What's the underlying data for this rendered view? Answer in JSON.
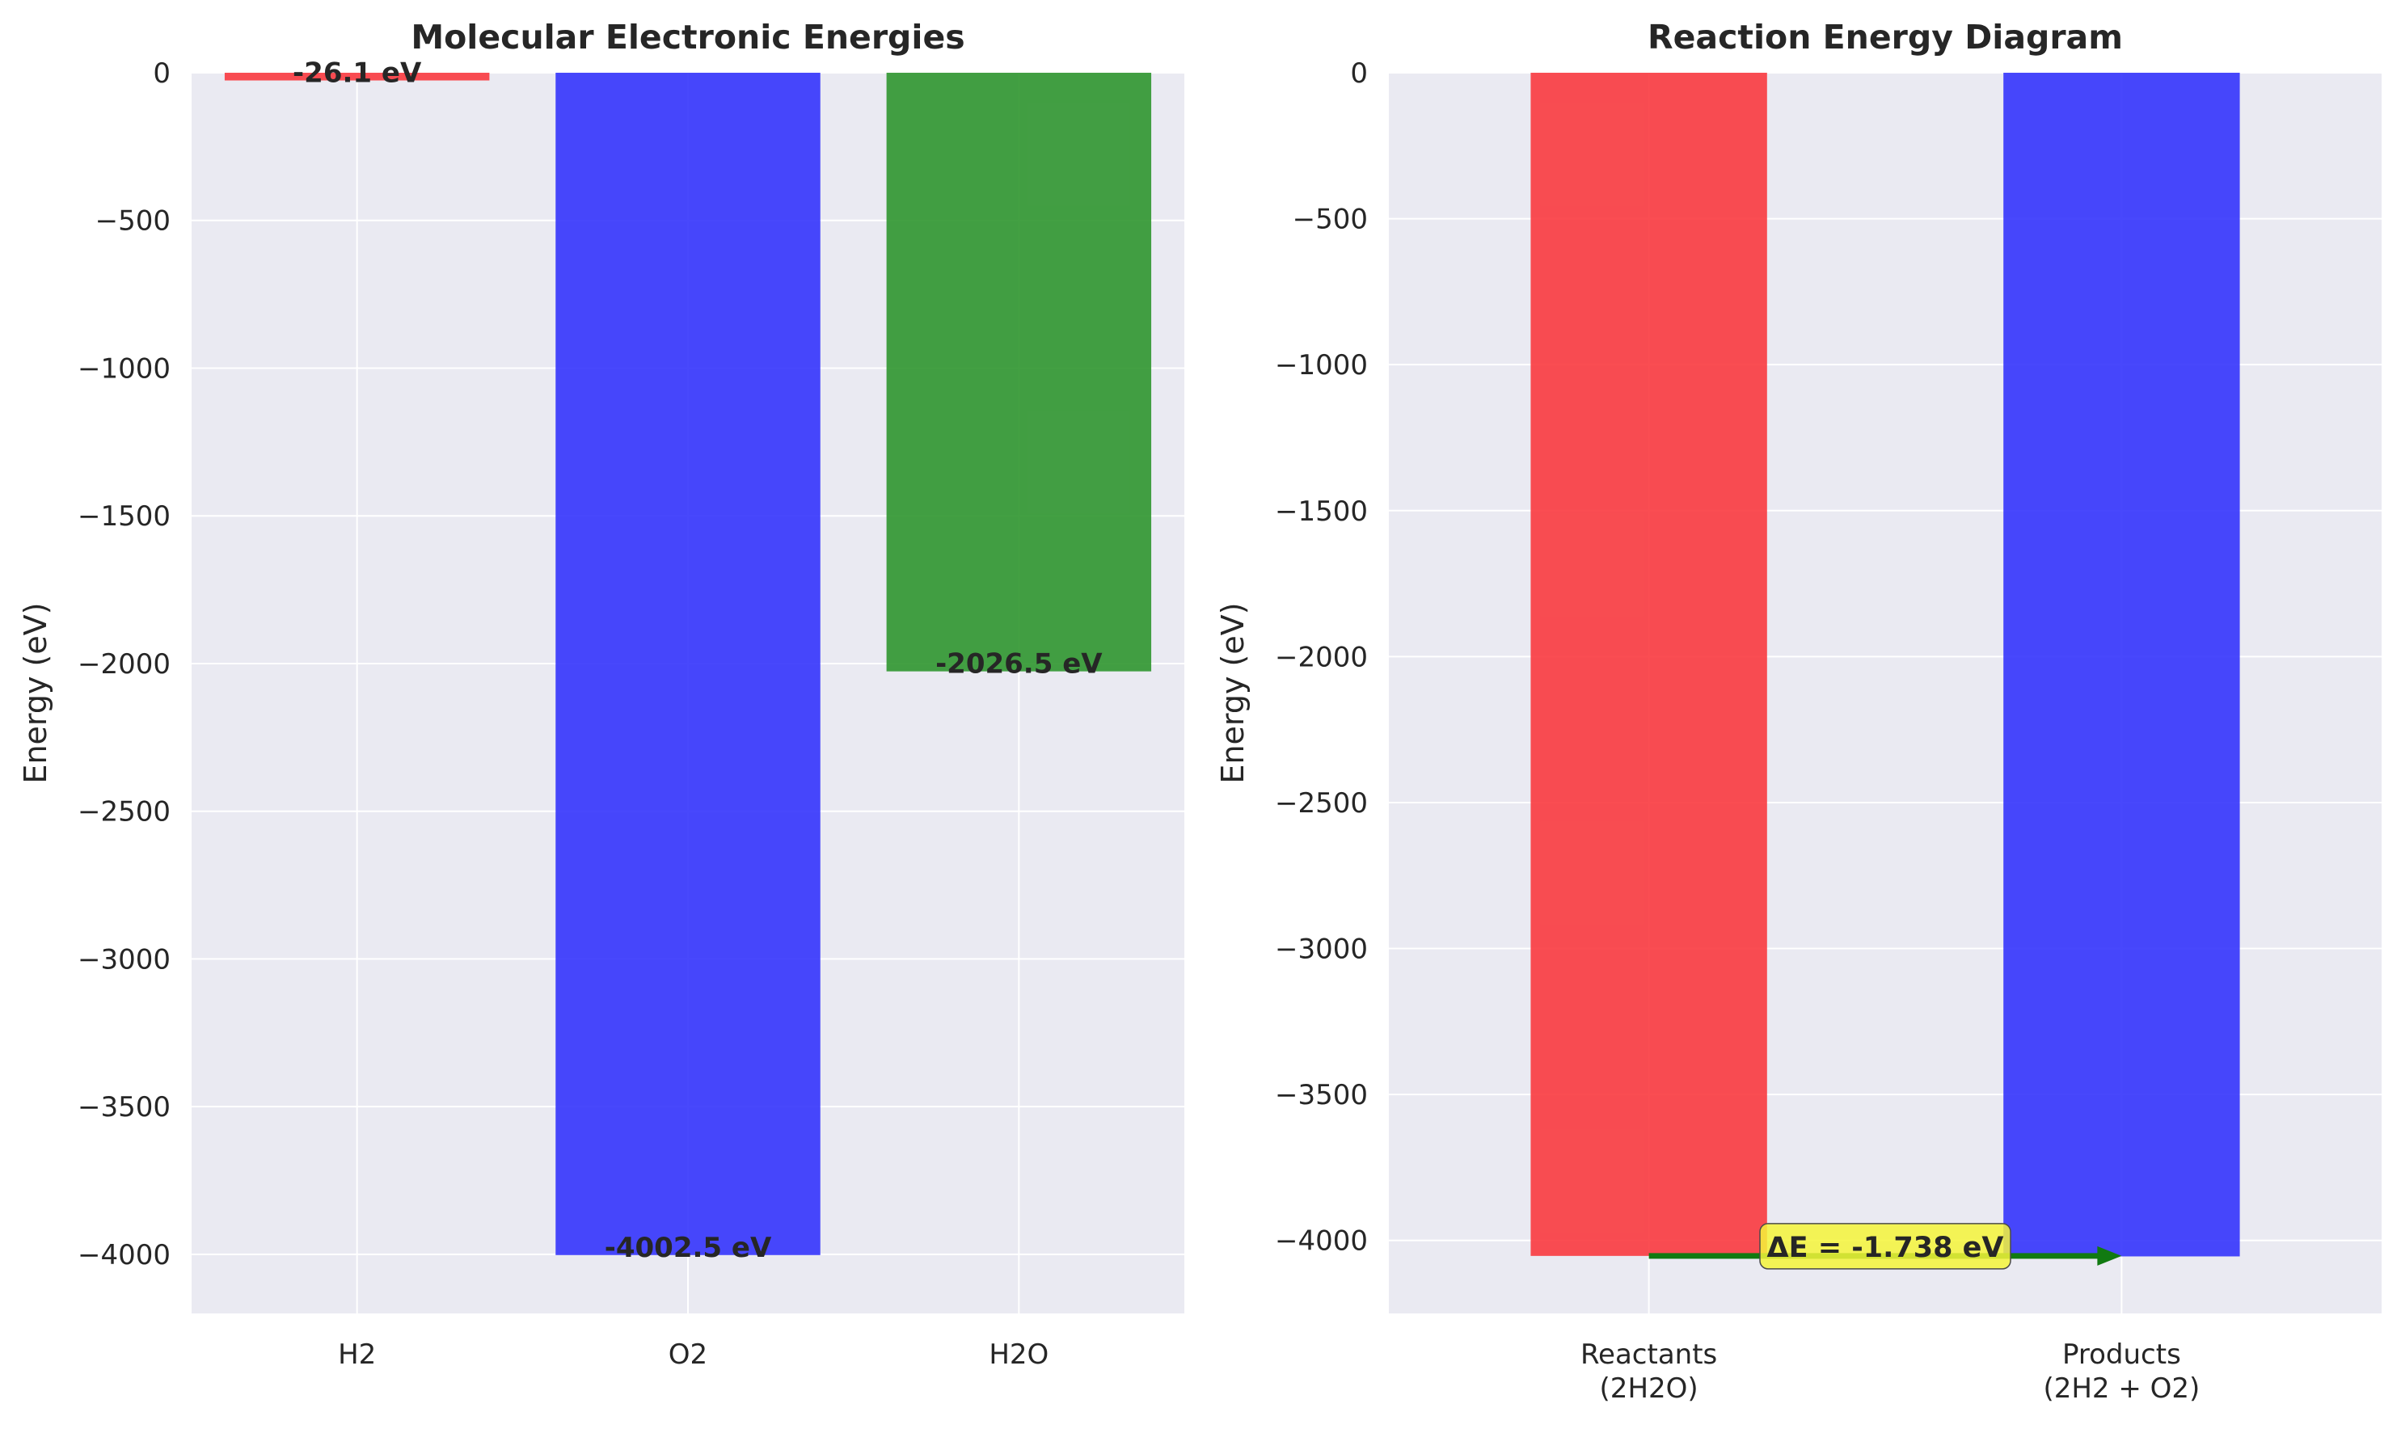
{
  "chart_data": [
    {
      "type": "bar",
      "title": "Molecular Electronic Energies",
      "xlabel": "",
      "ylabel": "Energy (eV)",
      "categories": [
        "H2",
        "O2",
        "H2O"
      ],
      "values": [
        -26.1,
        -4002.5,
        -2026.5
      ],
      "bar_labels": [
        "-26.1 eV",
        "-4002.5 eV",
        "-2026.5 eV"
      ],
      "colors": [
        "#f93a3f",
        "#3434fc",
        "#2f962f"
      ],
      "ylim": [
        -4200,
        0
      ],
      "yticks": [
        0,
        -500,
        -1000,
        -1500,
        -2000,
        -2500,
        -3000,
        -3500,
        -4000
      ],
      "ytick_labels": [
        "0",
        "−500",
        "−1000",
        "−1500",
        "−2000",
        "−2500",
        "−3000",
        "−3500",
        "−4000"
      ],
      "grid": true
    },
    {
      "type": "bar",
      "title": "Reaction Energy Diagram",
      "xlabel": "",
      "ylabel": "Energy (eV)",
      "categories": [
        [
          "Reactants",
          "(2H2O)"
        ],
        [
          "Products",
          "(2H2 + O2)"
        ]
      ],
      "values": [
        -4053.0,
        -4054.7
      ],
      "colors": [
        "#f93a3f",
        "#3434fc"
      ],
      "ylim": [
        -4250,
        0
      ],
      "yticks": [
        0,
        -500,
        -1000,
        -1500,
        -2000,
        -2500,
        -3000,
        -3500,
        -4000
      ],
      "ytick_labels": [
        "0",
        "−500",
        "−1000",
        "−1500",
        "−2000",
        "−2500",
        "−3000",
        "−3500",
        "−4000"
      ],
      "grid": true,
      "annotation": {
        "text": "ΔE = -1.738 eV",
        "arrow_color": "#117a11",
        "box_color": "#f4f43a"
      }
    }
  ]
}
